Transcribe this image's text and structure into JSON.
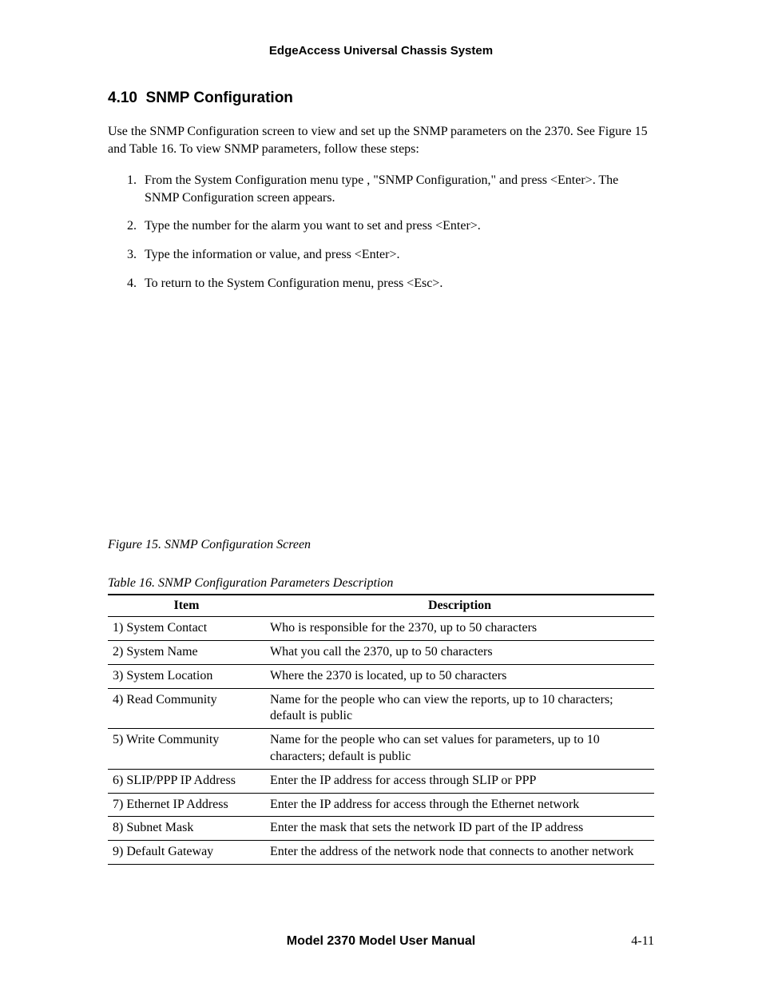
{
  "header": {
    "running_title": "EdgeAccess Universal Chassis System"
  },
  "section": {
    "number": "4.10",
    "title": "SNMP Configuration",
    "intro": "Use the SNMP Configuration screen to view and set up the SNMP parameters on the 2370.  See Figure 15 and Table 16.  To view SNMP parameters, follow these steps:",
    "steps": [
      "From the System Configuration menu type   , \"SNMP Configuration,\" and press <Enter>.  The SNMP Configuration screen appears.",
      "Type the number for the alarm you want to set and press <Enter>.",
      "Type the information or value, and press <Enter>.",
      "To return to the System Configuration menu, press <Esc>."
    ]
  },
  "figure": {
    "caption": "Figure 15.  SNMP Configuration Screen"
  },
  "table": {
    "caption": "Table 16.  SNMP Configuration Parameters Description",
    "headers": {
      "item": "Item",
      "description": "Description"
    },
    "rows": [
      {
        "item": "1) System Contact",
        "desc": "Who is responsible for the 2370, up to 50 characters"
      },
      {
        "item": "2) System Name",
        "desc": "What you call the 2370, up to 50 characters"
      },
      {
        "item": "3) System Location",
        "desc": "Where the 2370 is located, up to 50 characters"
      },
      {
        "item": "4) Read Community",
        "desc": "Name for the people who can view the reports, up to 10 characters; default is public"
      },
      {
        "item": "5) Write Community",
        "desc": "Name for the people who can set values for parameters, up to 10 characters; default is public"
      },
      {
        "item": "6) SLIP/PPP IP Address",
        "desc": "Enter the IP address for access through SLIP or PPP"
      },
      {
        "item": "7) Ethernet IP Address",
        "desc": "Enter the IP address for access through the Ethernet network"
      },
      {
        "item": "8) Subnet Mask",
        "desc": "Enter the mask that sets the network ID part of the IP address"
      },
      {
        "item": "9) Default Gateway",
        "desc": "Enter the address of the network node that connects to another network"
      }
    ]
  },
  "footer": {
    "title": "Model 2370 Model User Manual",
    "page": "4-11"
  }
}
